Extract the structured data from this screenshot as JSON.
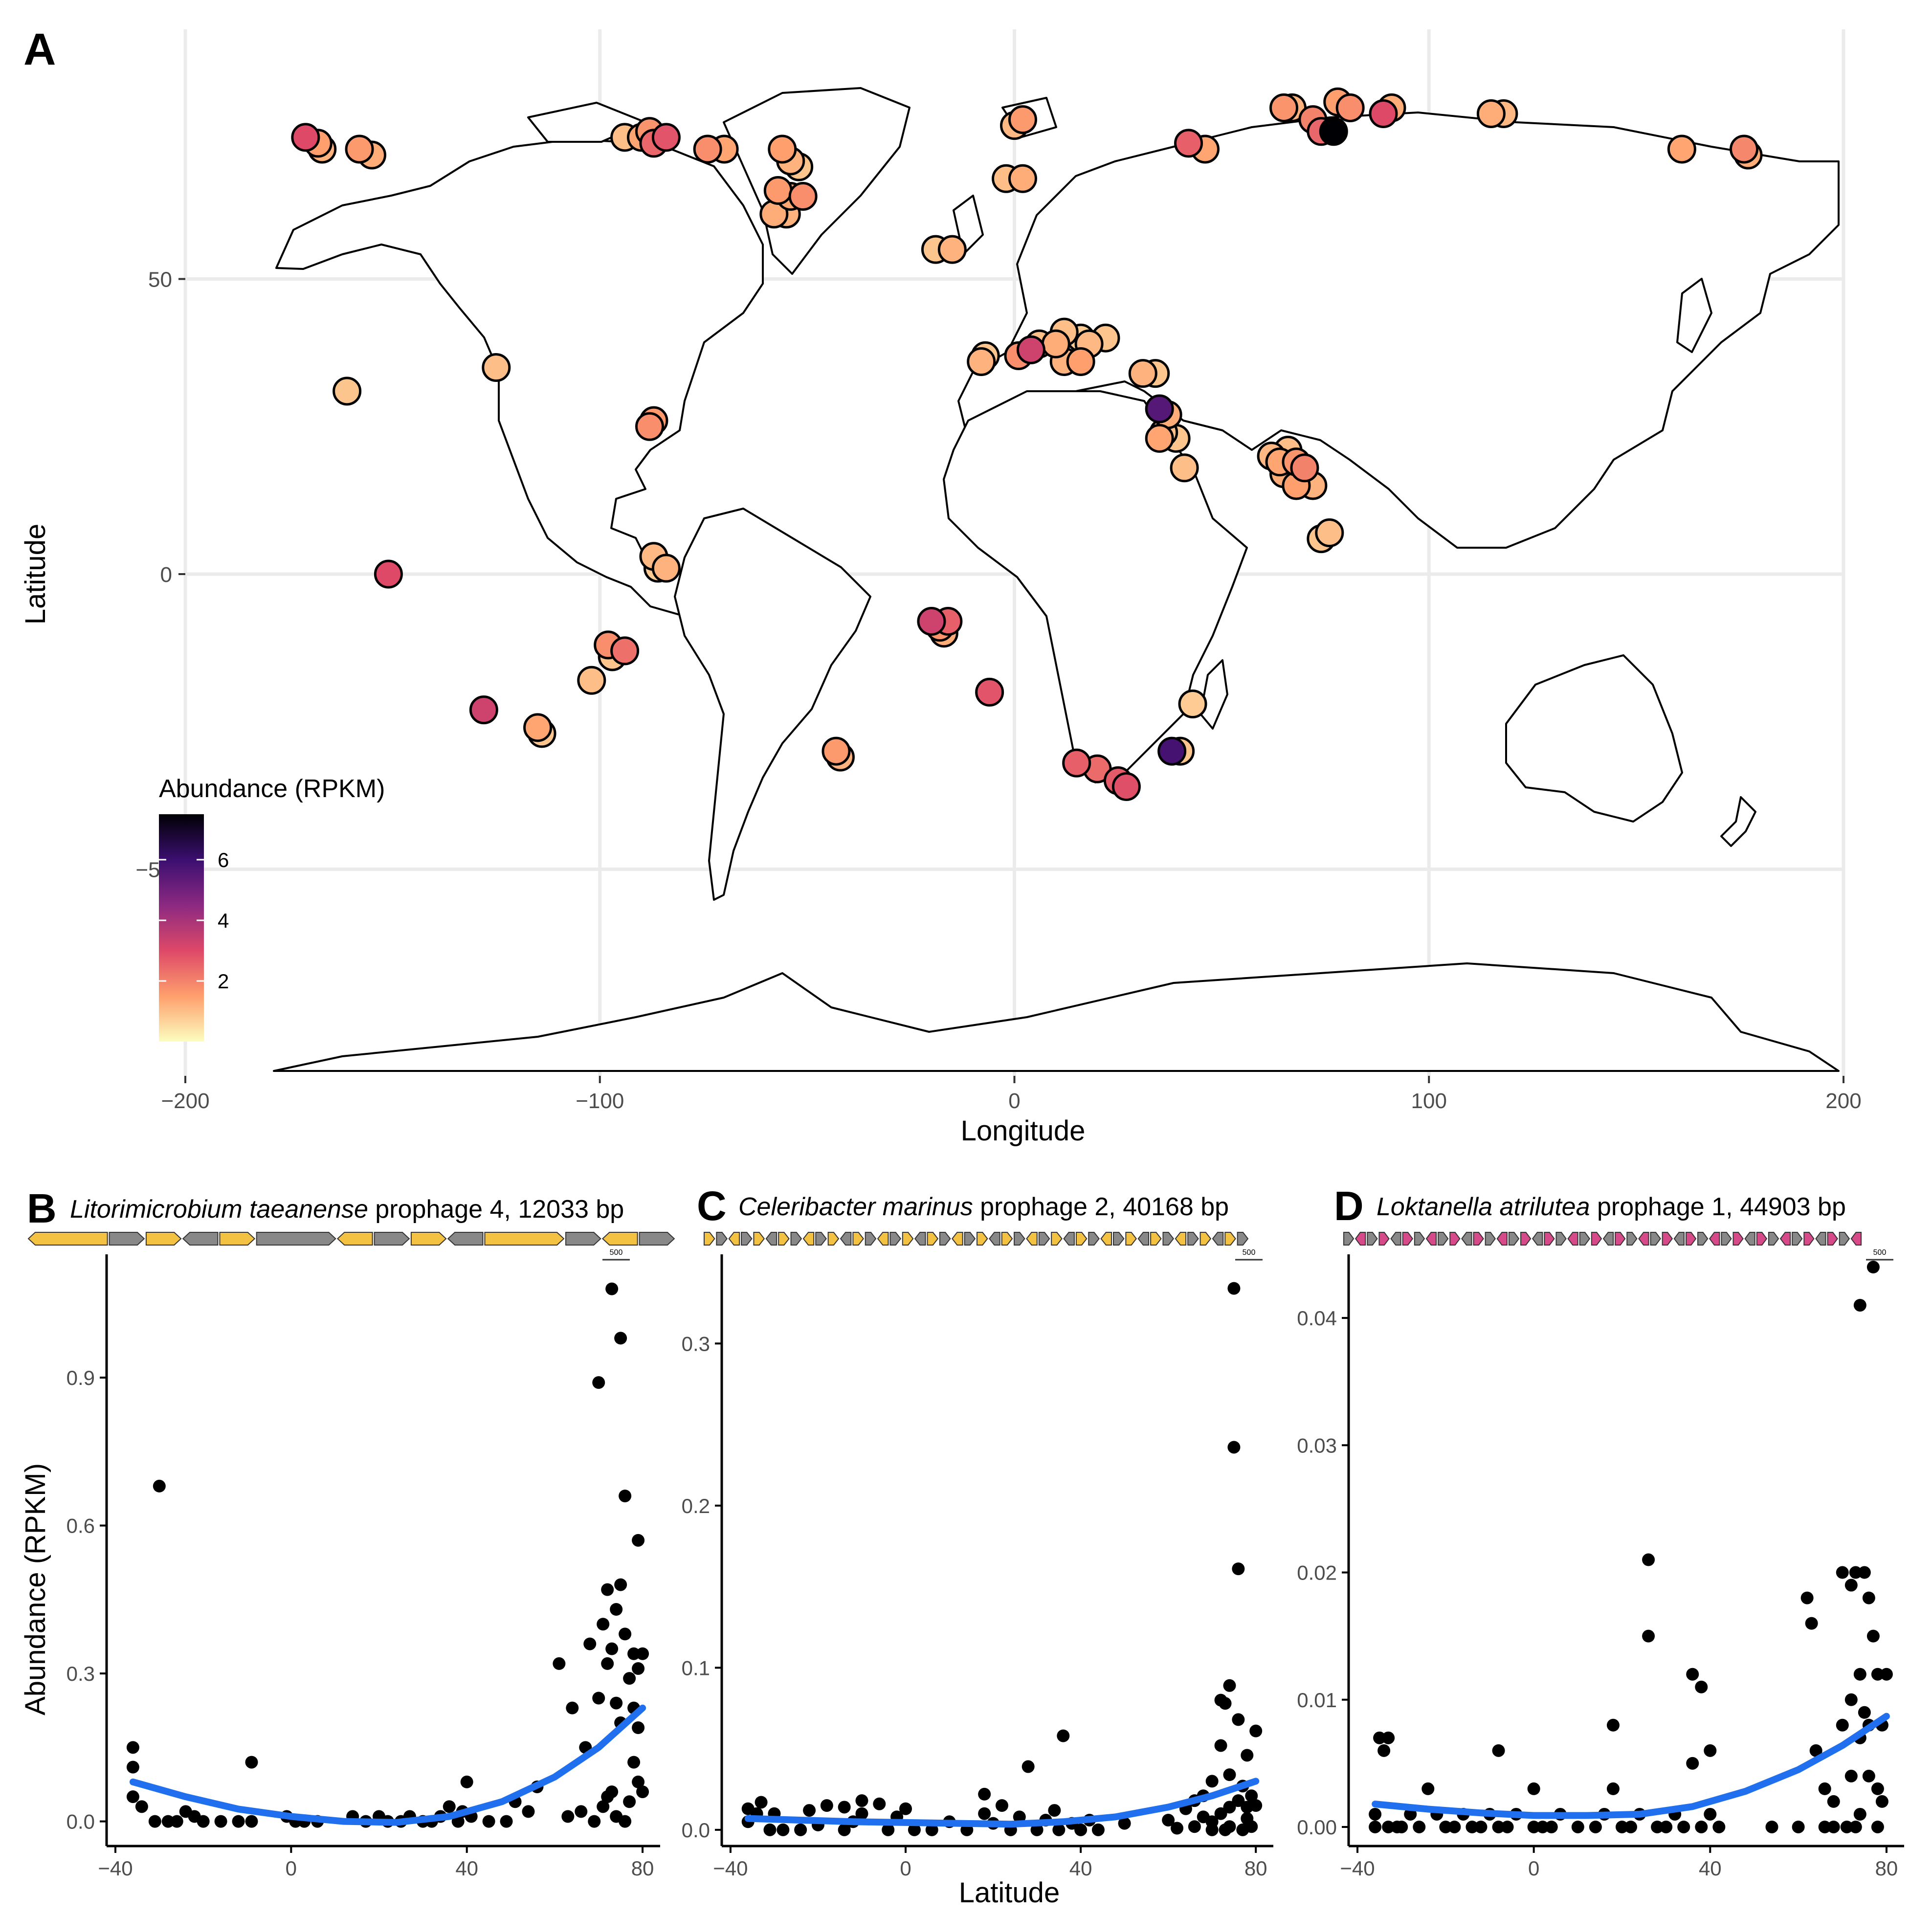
{
  "panel_letters": [
    "A",
    "B",
    "C",
    "D"
  ],
  "map_panel": {
    "xlabel": "Longitude",
    "ylabel": "Latitude",
    "xticks": [
      -200,
      -100,
      0,
      100,
      200
    ],
    "yticks": [
      -50,
      0,
      50
    ],
    "xtick_labels": [
      "−200",
      "−100",
      "0",
      "100",
      "200"
    ],
    "ytick_labels": [
      "−50",
      "0",
      "50"
    ],
    "legend": {
      "title": "Abundance (RPKM)",
      "ticks": [
        2,
        4,
        6
      ],
      "tick_labels": [
        "2",
        "4",
        "6"
      ],
      "range": [
        0,
        7.5
      ],
      "colors": [
        "#000004",
        "#3b0f70",
        "#8c2981",
        "#de4968",
        "#fe9f6d",
        "#fcfdbf"
      ]
    }
  },
  "prophage_panels": [
    {
      "letter": "B",
      "species": "Litorimicrobium taeanense",
      "suffix": " prophage 4, 12033 bp",
      "scale_label": "500",
      "yticks": [
        0.0,
        0.3,
        0.6,
        0.9
      ],
      "ytick_labels": [
        "0.0",
        "0.3",
        "0.6",
        "0.9"
      ],
      "xticks": [
        -40,
        0,
        40,
        80
      ],
      "xtick_labels": [
        "−40",
        "0",
        "40",
        "80"
      ]
    },
    {
      "letter": "C",
      "species": "Celeribacter marinus",
      "suffix": " prophage 2, 40168 bp",
      "scale_label": "500",
      "yticks": [
        0.0,
        0.1,
        0.2,
        0.3
      ],
      "ytick_labels": [
        "0.0",
        "0.1",
        "0.2",
        "0.3"
      ],
      "xticks": [
        -40,
        0,
        40,
        80
      ],
      "xtick_labels": [
        "−40",
        "0",
        "40",
        "80"
      ]
    },
    {
      "letter": "D",
      "species": "Loktanella atrilutea",
      "suffix": " prophage 1, 44903 bp",
      "scale_label": "500",
      "yticks": [
        0.0,
        0.01,
        0.02,
        0.03,
        0.04
      ],
      "ytick_labels": [
        "0.00",
        "0.01",
        "0.02",
        "0.03",
        "0.04"
      ],
      "xticks": [
        -40,
        0,
        40,
        80
      ],
      "xtick_labels": [
        "−40",
        "0",
        "40",
        "80"
      ]
    }
  ],
  "bottom_labels": {
    "ylabel": "Abundance (RPKM)",
    "xlabel": "Latitude"
  },
  "chart_data": [
    {
      "type": "scatter",
      "panel": "A",
      "xlabel": "Longitude",
      "ylabel": "Latitude",
      "xlim": [
        -200,
        200
      ],
      "ylim": [
        -90,
        90
      ],
      "color_legend": "Abundance (RPKM)",
      "points": [
        {
          "lon": -171,
          "lat": 74,
          "v": 3.0
        },
        {
          "lon": -168,
          "lat": 73,
          "v": 1.5
        },
        {
          "lon": -167,
          "lat": 72,
          "v": 1.2
        },
        {
          "lon": -158,
          "lat": 72,
          "v": 1.6
        },
        {
          "lon": -155,
          "lat": 71,
          "v": 1.3
        },
        {
          "lon": -94,
          "lat": 74,
          "v": 1.0
        },
        {
          "lon": -90,
          "lat": 74,
          "v": 1.4
        },
        {
          "lon": -88,
          "lat": 75,
          "v": 1.7
        },
        {
          "lon": -87,
          "lat": 73,
          "v": 2.5
        },
        {
          "lon": -84,
          "lat": 74,
          "v": 2.8
        },
        {
          "lon": -74,
          "lat": 72,
          "v": 1.8
        },
        {
          "lon": -70,
          "lat": 72,
          "v": 1.4
        },
        {
          "lon": -56,
          "lat": 72,
          "v": 1.5
        },
        {
          "lon": -54,
          "lat": 70,
          "v": 1.2
        },
        {
          "lon": -52,
          "lat": 69,
          "v": 0.9
        },
        {
          "lon": -57,
          "lat": 65,
          "v": 1.6
        },
        {
          "lon": -54,
          "lat": 64,
          "v": 1.4
        },
        {
          "lon": -51,
          "lat": 64,
          "v": 1.8
        },
        {
          "lon": -58,
          "lat": 61,
          "v": 1.3
        },
        {
          "lon": -55,
          "lat": 61,
          "v": 1.2
        },
        {
          "lon": 0,
          "lat": 76,
          "v": 1.1
        },
        {
          "lon": 2,
          "lat": 77,
          "v": 1.6
        },
        {
          "lon": -2,
          "lat": 67,
          "v": 1.0
        },
        {
          "lon": 2,
          "lat": 67,
          "v": 1.3
        },
        {
          "lon": -19,
          "lat": 55,
          "v": 0.9
        },
        {
          "lon": -15,
          "lat": 55,
          "v": 1.2
        },
        {
          "lon": 42,
          "lat": 73,
          "v": 2.6
        },
        {
          "lon": 46,
          "lat": 72,
          "v": 1.4
        },
        {
          "lon": 65,
          "lat": 79,
          "v": 1.7
        },
        {
          "lon": 67,
          "lat": 79,
          "v": 1.2
        },
        {
          "lon": 72,
          "lat": 77,
          "v": 2.0
        },
        {
          "lon": 74,
          "lat": 75,
          "v": 2.5
        },
        {
          "lon": 77,
          "lat": 75,
          "v": 7.5
        },
        {
          "lon": 78,
          "lat": 80,
          "v": 1.5
        },
        {
          "lon": 81,
          "lat": 79,
          "v": 1.8
        },
        {
          "lon": 89,
          "lat": 78,
          "v": 3.0
        },
        {
          "lon": 91,
          "lat": 79,
          "v": 1.3
        },
        {
          "lon": 115,
          "lat": 78,
          "v": 1.3
        },
        {
          "lon": 118,
          "lat": 78,
          "v": 1.1
        },
        {
          "lon": 161,
          "lat": 72,
          "v": 1.4
        },
        {
          "lon": 176,
          "lat": 72,
          "v": 1.9
        },
        {
          "lon": 177,
          "lat": 71,
          "v": 1.3
        },
        {
          "lon": -161,
          "lat": 31,
          "v": 0.9
        },
        {
          "lon": -125,
          "lat": 35,
          "v": 1.0
        },
        {
          "lon": -88,
          "lat": 25,
          "v": 1.8
        },
        {
          "lon": -87,
          "lat": 26,
          "v": 1.6
        },
        {
          "lon": -151,
          "lat": 0,
          "v": 3.0
        },
        {
          "lon": -87,
          "lat": 3,
          "v": 1.1
        },
        {
          "lon": -86,
          "lat": 1,
          "v": 0.8
        },
        {
          "lon": -84,
          "lat": 1,
          "v": 1.2
        },
        {
          "lon": -98,
          "lat": -12,
          "v": 1.8
        },
        {
          "lon": -94,
          "lat": -13,
          "v": 2.3
        },
        {
          "lon": -97,
          "lat": -14,
          "v": 0.9
        },
        {
          "lon": -102,
          "lat": -18,
          "v": 1.0
        },
        {
          "lon": -128,
          "lat": -23,
          "v": 3.3
        },
        {
          "lon": -115,
          "lat": -26,
          "v": 1.4
        },
        {
          "lon": -114,
          "lat": -27,
          "v": 0.9
        },
        {
          "lon": -43,
          "lat": -30,
          "v": 1.6
        },
        {
          "lon": -42,
          "lat": -31,
          "v": 1.2
        },
        {
          "lon": -20,
          "lat": -8,
          "v": 3.3
        },
        {
          "lon": -18,
          "lat": -9,
          "v": 1.7
        },
        {
          "lon": -16,
          "lat": -8,
          "v": 2.6
        },
        {
          "lon": -17,
          "lat": -10,
          "v": 1.3
        },
        {
          "lon": -6,
          "lat": -20,
          "v": 2.8
        },
        {
          "lon": -8,
          "lat": 36,
          "v": 1.2
        },
        {
          "lon": -7,
          "lat": 37,
          "v": 0.9
        },
        {
          "lon": 1,
          "lat": 37,
          "v": 1.8
        },
        {
          "lon": 4,
          "lat": 38,
          "v": 3.3
        },
        {
          "lon": 6,
          "lat": 39,
          "v": 1.0
        },
        {
          "lon": 10,
          "lat": 39,
          "v": 1.3
        },
        {
          "lon": 12,
          "lat": 41,
          "v": 1.0
        },
        {
          "lon": 16,
          "lat": 40,
          "v": 0.8
        },
        {
          "lon": 18,
          "lat": 39,
          "v": 1.1
        },
        {
          "lon": 22,
          "lat": 40,
          "v": 0.9
        },
        {
          "lon": 12,
          "lat": 36,
          "v": 1.2
        },
        {
          "lon": 16,
          "lat": 36,
          "v": 1.5
        },
        {
          "lon": 31,
          "lat": 34,
          "v": 1.2
        },
        {
          "lon": 34,
          "lat": 34,
          "v": 0.9
        },
        {
          "lon": 35,
          "lat": 28,
          "v": 5.5
        },
        {
          "lon": 37,
          "lat": 27,
          "v": 1.3
        },
        {
          "lon": 36,
          "lat": 24,
          "v": 1.0
        },
        {
          "lon": 35,
          "lat": 23,
          "v": 1.4
        },
        {
          "lon": 39,
          "lat": 23,
          "v": 0.9
        },
        {
          "lon": 41,
          "lat": 18,
          "v": 1.0
        },
        {
          "lon": 43,
          "lat": -22,
          "v": 0.8
        },
        {
          "lon": 38,
          "lat": -30,
          "v": 5.8
        },
        {
          "lon": 40,
          "lat": -30,
          "v": 0.9
        },
        {
          "lon": 15,
          "lat": -32,
          "v": 2.6
        },
        {
          "lon": 20,
          "lat": -33,
          "v": 2.4
        },
        {
          "lon": 25,
          "lat": -35,
          "v": 2.7
        },
        {
          "lon": 27,
          "lat": -36,
          "v": 2.9
        },
        {
          "lon": 62,
          "lat": 20,
          "v": 1.1
        },
        {
          "lon": 64,
          "lat": 19,
          "v": 1.4
        },
        {
          "lon": 66,
          "lat": 21,
          "v": 1.0
        },
        {
          "lon": 68,
          "lat": 19,
          "v": 1.7
        },
        {
          "lon": 70,
          "lat": 18,
          "v": 2.0
        },
        {
          "lon": 65,
          "lat": 17,
          "v": 1.3
        },
        {
          "lon": 68,
          "lat": 15,
          "v": 1.5
        },
        {
          "lon": 72,
          "lat": 15,
          "v": 1.2
        },
        {
          "lon": 74,
          "lat": 6,
          "v": 0.9
        },
        {
          "lon": 76,
          "lat": 7,
          "v": 1.0
        }
      ]
    },
    {
      "type": "scatter",
      "panel": "B",
      "title": "Litorimicrobium taeanense prophage 4, 12033 bp",
      "xlabel": "Latitude",
      "ylabel": "Abundance (RPKM)",
      "xlim": [
        -42,
        84
      ],
      "ylim": [
        -0.05,
        1.15
      ],
      "x": [
        -36,
        -36,
        -36,
        -34,
        -31,
        -30,
        -28,
        -26,
        -24,
        -22,
        -20,
        -16,
        -12,
        -9,
        -9,
        -1,
        1,
        3,
        6,
        14,
        17,
        20,
        22,
        25,
        27,
        30,
        32,
        34,
        36,
        38,
        39,
        40,
        41,
        45,
        49,
        51,
        54,
        56,
        61,
        63,
        64,
        66,
        67,
        68,
        69,
        70,
        70,
        71,
        71,
        72,
        72,
        72,
        73,
        73,
        73,
        74,
        74,
        74,
        75,
        75,
        75,
        76,
        76,
        76,
        77,
        77,
        78,
        78,
        78,
        79,
        79,
        79,
        79,
        80,
        80
      ],
      "y": [
        0.05,
        0.11,
        0.15,
        0.03,
        0.0,
        0.68,
        0.0,
        0.0,
        0.02,
        0.01,
        0.0,
        0.0,
        0.0,
        0.12,
        0.0,
        0.01,
        0.0,
        0.0,
        0.0,
        0.01,
        0.0,
        0.01,
        0.0,
        0.0,
        0.01,
        0.0,
        0.0,
        0.01,
        0.03,
        0.0,
        0.02,
        0.08,
        0.01,
        0.0,
        0.0,
        0.04,
        0.02,
        0.07,
        0.32,
        0.01,
        0.23,
        0.02,
        0.15,
        0.36,
        0.0,
        0.25,
        0.89,
        0.03,
        0.4,
        0.05,
        0.32,
        0.47,
        1.08,
        0.35,
        0.06,
        0.24,
        0.01,
        0.43,
        0.98,
        0.48,
        0.2,
        0.66,
        0.0,
        0.38,
        0.04,
        0.29,
        0.23,
        0.34,
        0.12,
        0.08,
        0.19,
        0.57,
        0.31,
        0.34,
        0.06
      ],
      "fit_x": [
        -36,
        -24,
        -12,
        0,
        12,
        24,
        36,
        48,
        60,
        70,
        80
      ],
      "fit_y": [
        0.08,
        0.05,
        0.025,
        0.01,
        0.0,
        -0.002,
        0.01,
        0.04,
        0.09,
        0.15,
        0.23
      ]
    },
    {
      "type": "scatter",
      "panel": "C",
      "title": "Celeribacter marinus prophage 2, 40168 bp",
      "xlabel": "Latitude",
      "ylabel": "Abundance (RPKM)",
      "xlim": [
        -42,
        84
      ],
      "ylim": [
        -0.01,
        0.355
      ],
      "x": [
        -36,
        -36,
        -34,
        -33,
        -31,
        -30,
        -28,
        -24,
        -22,
        -20,
        -18,
        -14,
        -14,
        -12,
        -10,
        -10,
        -6,
        -4,
        -2,
        0,
        2,
        6,
        10,
        14,
        18,
        18,
        20,
        22,
        24,
        26,
        28,
        30,
        32,
        34,
        35,
        36,
        38,
        40,
        42,
        44,
        50,
        60,
        62,
        64,
        66,
        66,
        68,
        68,
        70,
        70,
        70,
        72,
        72,
        72,
        73,
        73,
        74,
        74,
        74,
        74,
        75,
        75,
        76,
        76,
        76,
        77,
        77,
        78,
        78,
        78,
        79,
        79,
        80,
        80
      ],
      "y": [
        0.013,
        0.005,
        0.01,
        0.017,
        0.0,
        0.01,
        0.0,
        0.0,
        0.012,
        0.003,
        0.015,
        0.014,
        0.0,
        0.005,
        0.01,
        0.018,
        0.016,
        0.0,
        0.008,
        0.013,
        0.0,
        0.0,
        0.005,
        0.0,
        0.01,
        0.022,
        0.004,
        0.015,
        0.0,
        0.008,
        0.039,
        0.0,
        0.006,
        0.012,
        0.0,
        0.058,
        0.004,
        0.0,
        0.006,
        0.0,
        0.004,
        0.006,
        0.001,
        0.013,
        0.002,
        0.018,
        0.021,
        0.008,
        0.005,
        0.03,
        0.0,
        0.08,
        0.052,
        0.01,
        0.078,
        0.0,
        0.089,
        0.034,
        0.014,
        0.002,
        0.334,
        0.236,
        0.161,
        0.068,
        0.018,
        0.027,
        0.0,
        0.046,
        0.014,
        0.007,
        0.021,
        0.002,
        0.061,
        0.015
      ],
      "fit_x": [
        -36,
        -24,
        -12,
        0,
        12,
        24,
        36,
        48,
        60,
        70,
        80
      ],
      "fit_y": [
        0.007,
        0.006,
        0.005,
        0.0045,
        0.004,
        0.0035,
        0.005,
        0.008,
        0.014,
        0.021,
        0.03
      ]
    },
    {
      "type": "scatter",
      "panel": "D",
      "title": "Loktanella atrilutea prophage 1, 44903 bp",
      "xlabel": "Latitude",
      "ylabel": "Abundance (RPKM)",
      "xlim": [
        -42,
        84
      ],
      "ylim": [
        -0.0015,
        0.045
      ],
      "x": [
        -36,
        -36,
        -35,
        -34,
        -33,
        -33,
        -31,
        -30,
        -28,
        -26,
        -24,
        -22,
        -20,
        -18,
        -16,
        -14,
        -12,
        -10,
        -8,
        -8,
        -6,
        -4,
        0,
        0,
        2,
        4,
        6,
        10,
        14,
        16,
        18,
        18,
        20,
        22,
        24,
        26,
        26,
        28,
        30,
        32,
        34,
        36,
        36,
        38,
        38,
        40,
        40,
        42,
        54,
        60,
        62,
        63,
        64,
        66,
        66,
        68,
        68,
        70,
        70,
        71,
        72,
        72,
        72,
        73,
        73,
        74,
        74,
        74,
        74,
        75,
        75,
        76,
        76,
        76,
        77,
        77,
        78,
        78,
        78,
        79,
        79,
        80
      ],
      "y": [
        0.0,
        0.001,
        0.007,
        0.006,
        0.0,
        0.007,
        0.0,
        0.0,
        0.001,
        0.0,
        0.003,
        0.001,
        0.0,
        0.0,
        0.001,
        0.0,
        0.0,
        0.001,
        0.006,
        0.0,
        0.0,
        0.001,
        0.0,
        0.003,
        0.0,
        0.0,
        0.001,
        0.0,
        0.0,
        0.001,
        0.008,
        0.003,
        0.0,
        0.0,
        0.001,
        0.021,
        0.015,
        0.0,
        0.0,
        0.001,
        0.0,
        0.012,
        0.005,
        0.0,
        0.011,
        0.001,
        0.006,
        0.0,
        0.0,
        0.0,
        0.018,
        0.016,
        0.006,
        0.003,
        0.0,
        0.002,
        0.0,
        0.02,
        0.008,
        0.0,
        0.019,
        0.01,
        0.004,
        0.02,
        0.0,
        0.041,
        0.012,
        0.007,
        0.001,
        0.02,
        0.009,
        0.018,
        0.008,
        0.004,
        0.044,
        0.015,
        0.012,
        0.003,
        0.0,
        0.008,
        0.002,
        0.012
      ],
      "fit_x": [
        -36,
        -24,
        -12,
        0,
        12,
        24,
        36,
        48,
        60,
        70,
        80
      ],
      "fit_y": [
        0.0018,
        0.0014,
        0.0011,
        0.0009,
        0.0009,
        0.001,
        0.0016,
        0.0028,
        0.0045,
        0.0064,
        0.0087
      ]
    }
  ]
}
